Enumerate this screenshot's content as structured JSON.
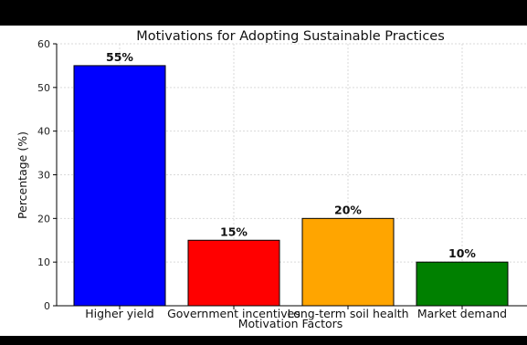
{
  "chart_data": {
    "type": "bar",
    "title": "Motivations for Adopting Sustainable Practices",
    "xlabel": "Motivation Factors",
    "ylabel": "Percentage (%)",
    "categories": [
      "Higher yield",
      "Government incentives",
      "Long-term soil health",
      "Market demand"
    ],
    "values": [
      55,
      15,
      20,
      10
    ],
    "value_labels": [
      "55%",
      "15%",
      "20%",
      "10%"
    ],
    "colors": [
      "#0000ff",
      "#ff0000",
      "#ffa500",
      "#008000"
    ],
    "ylim": [
      0,
      60
    ],
    "yticks": [
      0,
      10,
      20,
      30,
      40,
      50,
      60
    ],
    "grid": true
  }
}
